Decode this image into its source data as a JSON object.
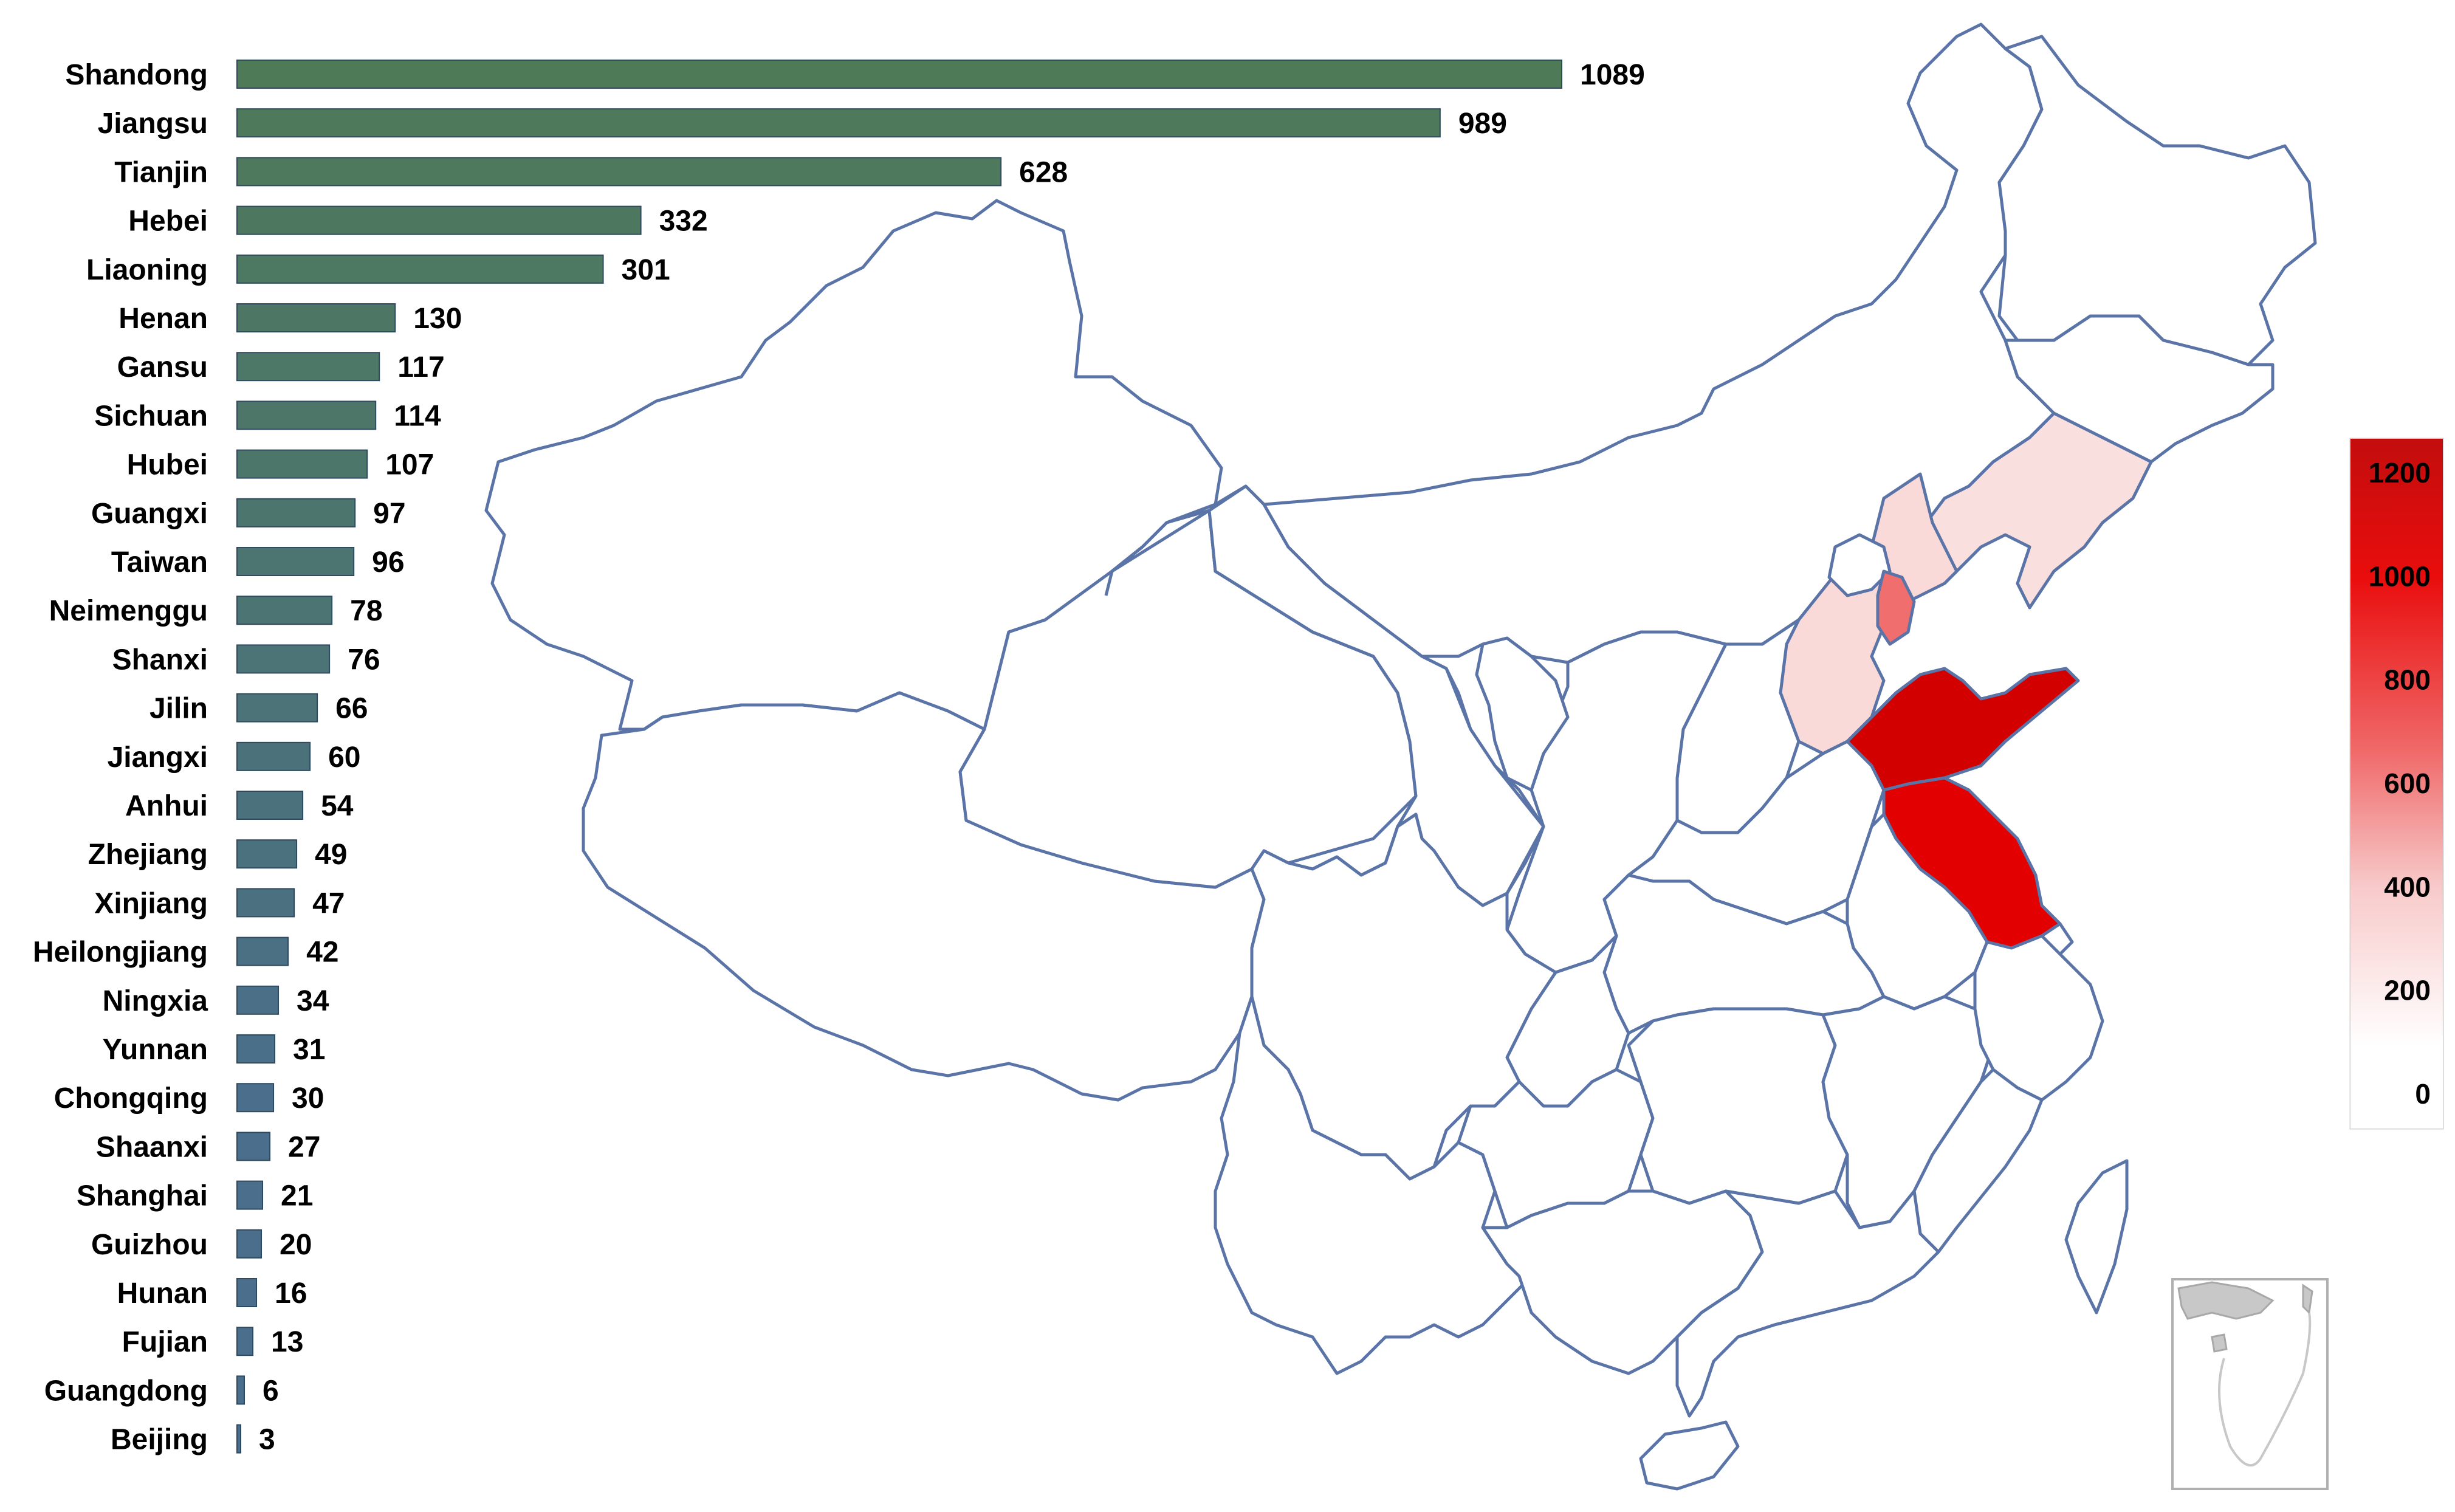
{
  "chart_data": {
    "type": "bar",
    "orientation": "horizontal",
    "categories": [
      "Shandong",
      "Jiangsu",
      "Tianjin",
      "Hebei",
      "Liaoning",
      "Henan",
      "Gansu",
      "Sichuan",
      "Hubei",
      "Guangxi",
      "Taiwan",
      "Neimenggu",
      "Shanxi",
      "Jilin",
      "Jiangxi",
      "Anhui",
      "Zhejiang",
      "Xinjiang",
      "Heilongjiang",
      "Ningxia",
      "Yunnan",
      "Chongqing",
      "Shaanxi",
      "Shanghai",
      "Guizhou",
      "Hunan",
      "Fujian",
      "Guangdong",
      "Beijing"
    ],
    "values": [
      1089,
      989,
      628,
      332,
      301,
      130,
      117,
      114,
      107,
      97,
      96,
      78,
      76,
      66,
      60,
      54,
      49,
      47,
      42,
      34,
      31,
      30,
      27,
      21,
      20,
      16,
      13,
      6,
      3
    ],
    "value_labels": [
      "1089",
      "989",
      "628",
      "332",
      "301",
      "130",
      "117",
      "114",
      "107",
      "97",
      "96",
      "78",
      "76",
      "66",
      "60",
      "54",
      "49",
      "47",
      "42",
      "34",
      "31",
      "30",
      "27",
      "21",
      "20",
      "16",
      "13",
      "6",
      "3"
    ],
    "bar_color_high": "#4e7a58",
    "bar_color_low": "#4a6e8c",
    "title": "",
    "xlabel": "",
    "ylabel": "",
    "legend_placement": "none",
    "grid": false
  },
  "map": {
    "type": "choropleth",
    "region": "China provinces",
    "colorscale": {
      "ticks": [
        "1200",
        "1000",
        "800",
        "600",
        "400",
        "200",
        "0"
      ],
      "tick_values": [
        1200,
        1000,
        800,
        600,
        400,
        200,
        0
      ],
      "range": [
        0,
        1200
      ],
      "color_low": "#ffffff",
      "color_high": "#c00000",
      "placement": "right"
    },
    "no_data_color": "#ffffff",
    "border_color": "#5b74a8",
    "inset": "south-china-sea"
  }
}
